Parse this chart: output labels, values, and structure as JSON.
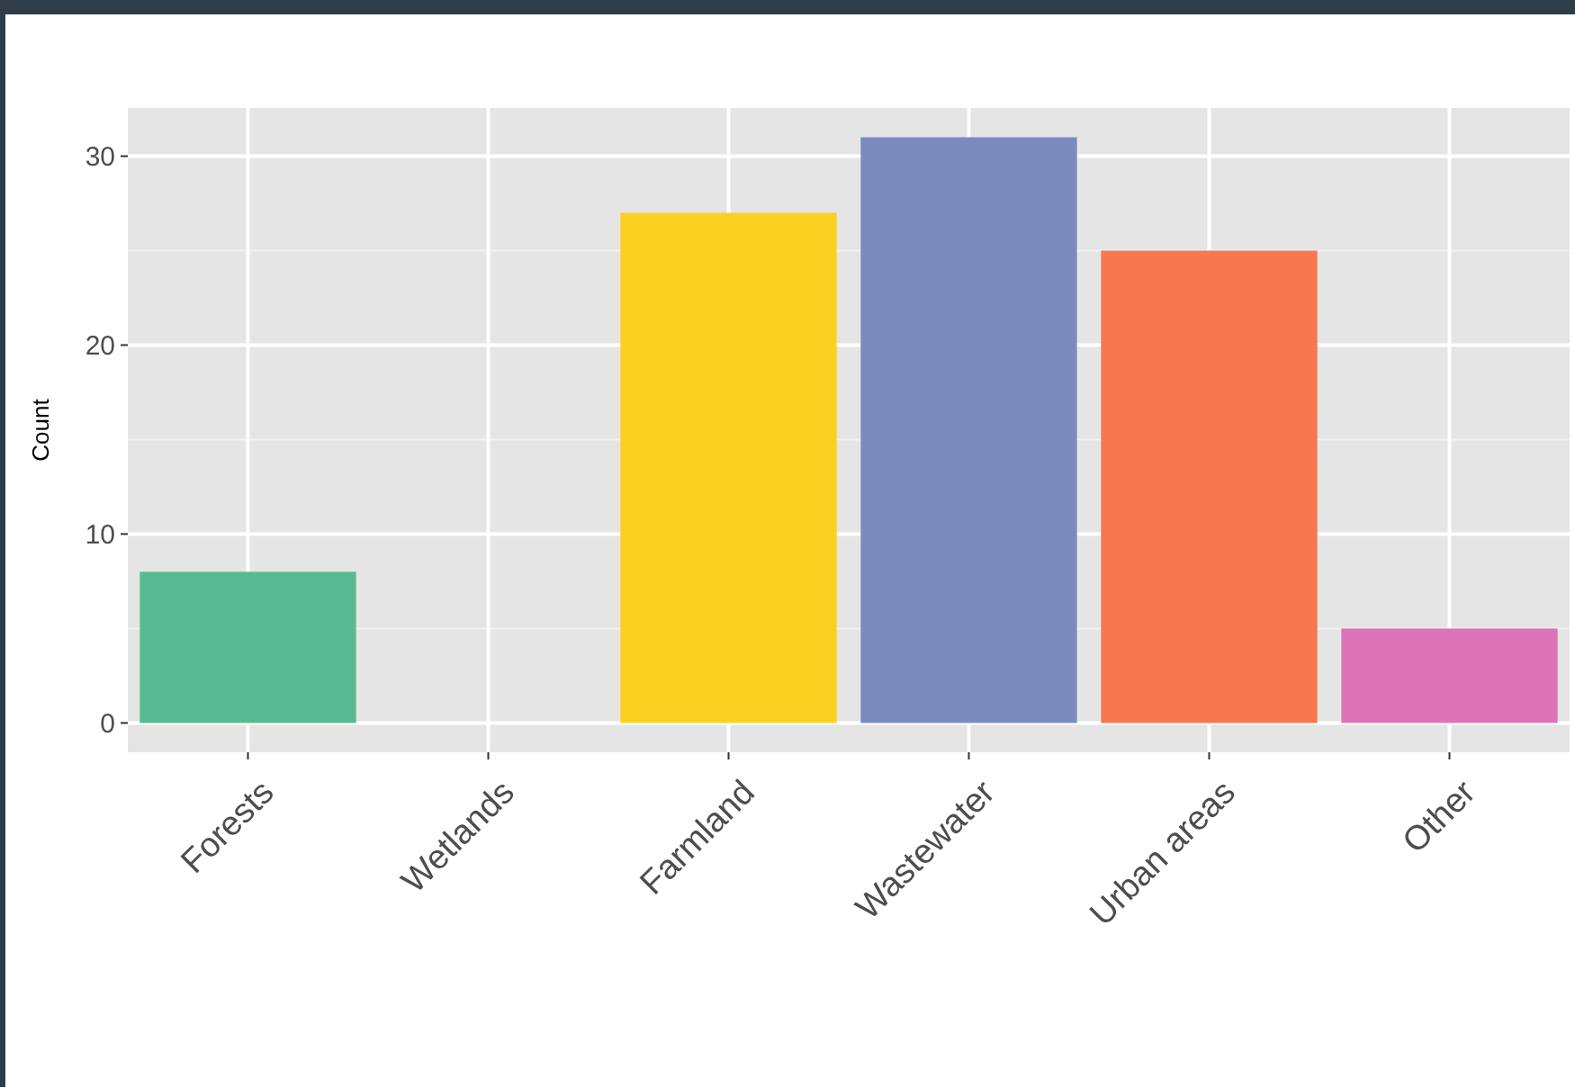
{
  "chart_data": {
    "type": "bar",
    "ylabel": "Count",
    "categories": [
      "Forests",
      "Wetlands",
      "Farmland",
      "Wastewater",
      "Urban areas",
      "Other"
    ],
    "values": [
      8,
      0,
      27,
      31,
      25,
      5
    ],
    "colors": [
      "#57ba93",
      "#f0cf3a",
      "#fcd020",
      "#7a8cbe",
      "#f7774e",
      "#dd74b8"
    ],
    "ylim": [
      -1.55,
      32.55
    ],
    "yticks": [
      0,
      10,
      20,
      30
    ],
    "grid": true
  }
}
